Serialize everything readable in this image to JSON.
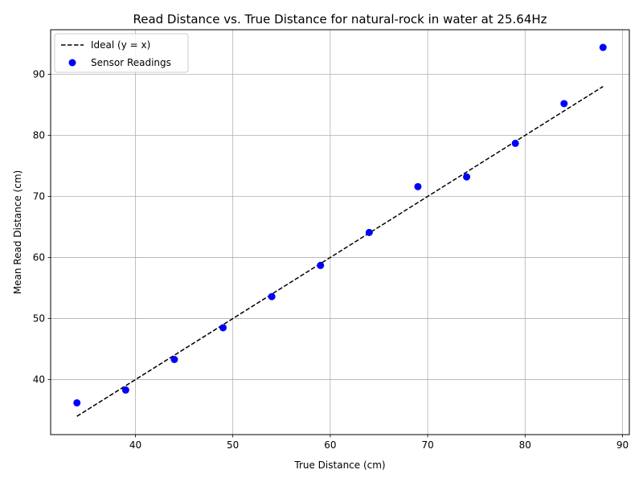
{
  "chart_data": {
    "type": "scatter",
    "title": "Read Distance vs. True Distance for natural-rock in water at 25.64Hz",
    "xlabel": "True Distance (cm)",
    "ylabel": "Mean Read Distance (cm)",
    "xlim": [
      31.3,
      90.7
    ],
    "ylim": [
      31.0,
      97.3
    ],
    "xticks": [
      40,
      50,
      60,
      70,
      80,
      90
    ],
    "yticks": [
      40,
      50,
      60,
      70,
      80,
      90
    ],
    "grid": true,
    "legend_position": "top-left",
    "series": [
      {
        "name": "Ideal (y = x)",
        "kind": "line",
        "style": "dashed",
        "color": "#000000",
        "x": [
          34,
          88
        ],
        "y": [
          34,
          88
        ]
      },
      {
        "name": "Sensor Readings",
        "kind": "scatter",
        "color": "#0000ff",
        "x": [
          34,
          39,
          44,
          49,
          54,
          59,
          64,
          69,
          74,
          79,
          84,
          88
        ],
        "y": [
          36.2,
          38.3,
          43.3,
          48.5,
          53.6,
          58.7,
          64.1,
          71.6,
          73.2,
          78.7,
          85.2,
          94.4
        ]
      }
    ]
  }
}
